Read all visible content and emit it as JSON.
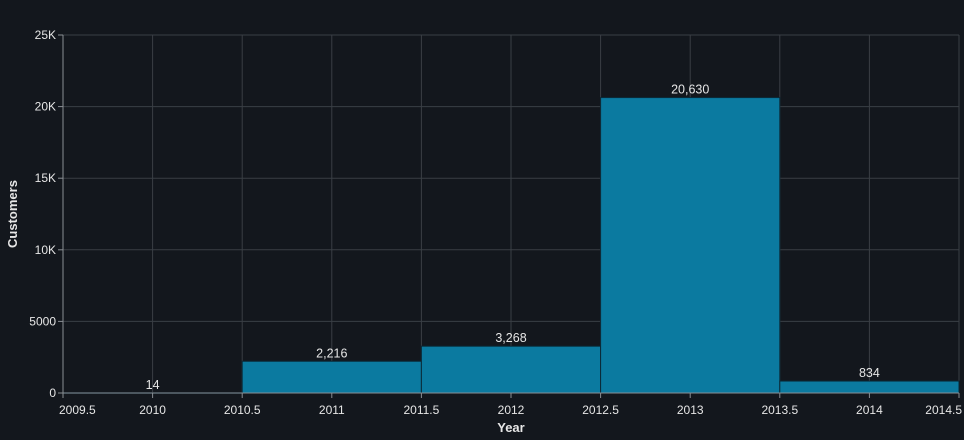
{
  "chart_data": {
    "type": "bar",
    "categories": [
      "2010",
      "2011",
      "2012",
      "2013",
      "2014"
    ],
    "x": [
      2010,
      2011,
      2012,
      2013,
      2014
    ],
    "values": [
      14,
      2216,
      3268,
      20630,
      834
    ],
    "value_labels": [
      "14",
      "2,216",
      "3,268",
      "20,630",
      "834"
    ],
    "xlabel": "Year",
    "ylabel": "Customers",
    "xlim": [
      2009.5,
      2014.5
    ],
    "ylim": [
      0,
      25000
    ],
    "x_ticks": [
      2009.5,
      2010,
      2010.5,
      2011,
      2011.5,
      2012,
      2012.5,
      2013,
      2013.5,
      2014,
      2014.5
    ],
    "y_ticks": [
      0,
      5000,
      10000,
      15000,
      20000,
      25000
    ],
    "y_tick_labels": [
      "0",
      "5000",
      "10K",
      "15K",
      "20K",
      "25K"
    ],
    "grid": true,
    "colors": {
      "background": "#13171d",
      "bar": "#0b7aa0",
      "bar_stroke": "#0a2a38",
      "grid": "#3a3f45",
      "axis": "#8a8f94",
      "text": "#e6e6e6"
    }
  }
}
